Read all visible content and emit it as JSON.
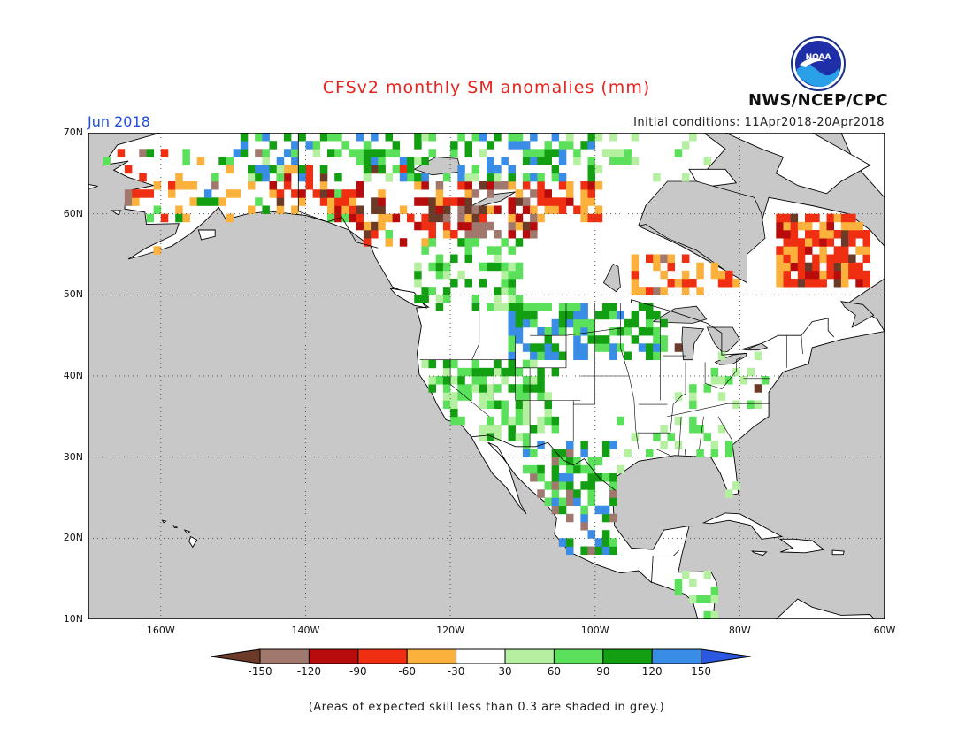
{
  "header": {
    "title": "CFSv2 monthly SM anomalies (mm)",
    "month": "Jun 2018",
    "initial_conditions": "Initial conditions: 11Apr2018-20Apr2018",
    "agency": "NWS/NCEP/CPC",
    "logo_text": "NOAA"
  },
  "map": {
    "lon_range": [
      -170,
      -60
    ],
    "lat_range": [
      10,
      70
    ],
    "lat_labels": [
      "70N",
      "60N",
      "50N",
      "40N",
      "30N",
      "20N",
      "10N"
    ],
    "lon_labels": [
      "160W",
      "140W",
      "120W",
      "100W",
      "80W",
      "60W"
    ],
    "colors": {
      "ocean": "#c8c8c8",
      "land": "#ffffff",
      "border": "#000000"
    }
  },
  "legend": {
    "labels": [
      "-150",
      "-120",
      "-90",
      "-60",
      "-30",
      "30",
      "60",
      "90",
      "120",
      "150"
    ],
    "colors": [
      "#6b3a28",
      "#a0786e",
      "#b80c0c",
      "#f02e12",
      "#fbb13c",
      "#ffffff",
      "#b4f0a0",
      "#5ae05a",
      "#12a012",
      "#3a8de6",
      "#2a58e0"
    ]
  },
  "footnote": "(Areas of expected skill less than 0.3 are shaded in grey.)"
}
